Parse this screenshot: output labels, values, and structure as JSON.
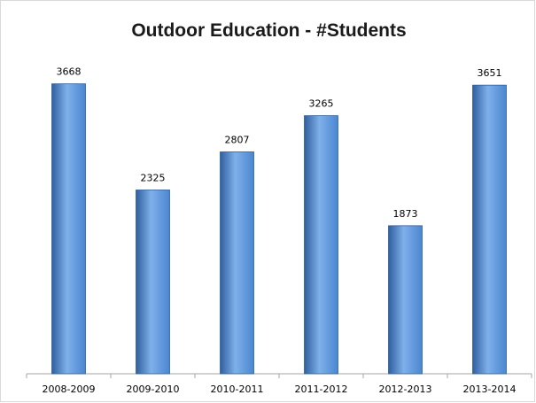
{
  "chart_data": {
    "type": "bar",
    "title": "Outdoor Education - #Students",
    "categories": [
      "2008-2009",
      "2009-2010",
      "2010-2011",
      "2011-2012",
      "2012-2013",
      "2013-2014"
    ],
    "values": [
      3668,
      2325,
      2807,
      3265,
      1873,
      3651
    ],
    "xlabel": "",
    "ylabel": "",
    "ylim": [
      0,
      4000
    ],
    "show_data_labels": true,
    "y_axis_visible": false,
    "grid": false,
    "legend": "none",
    "colors": {
      "bar": "#4a86d0",
      "bar_dark": "#2f5f9e",
      "bar_light": "#7fb0ea"
    }
  }
}
